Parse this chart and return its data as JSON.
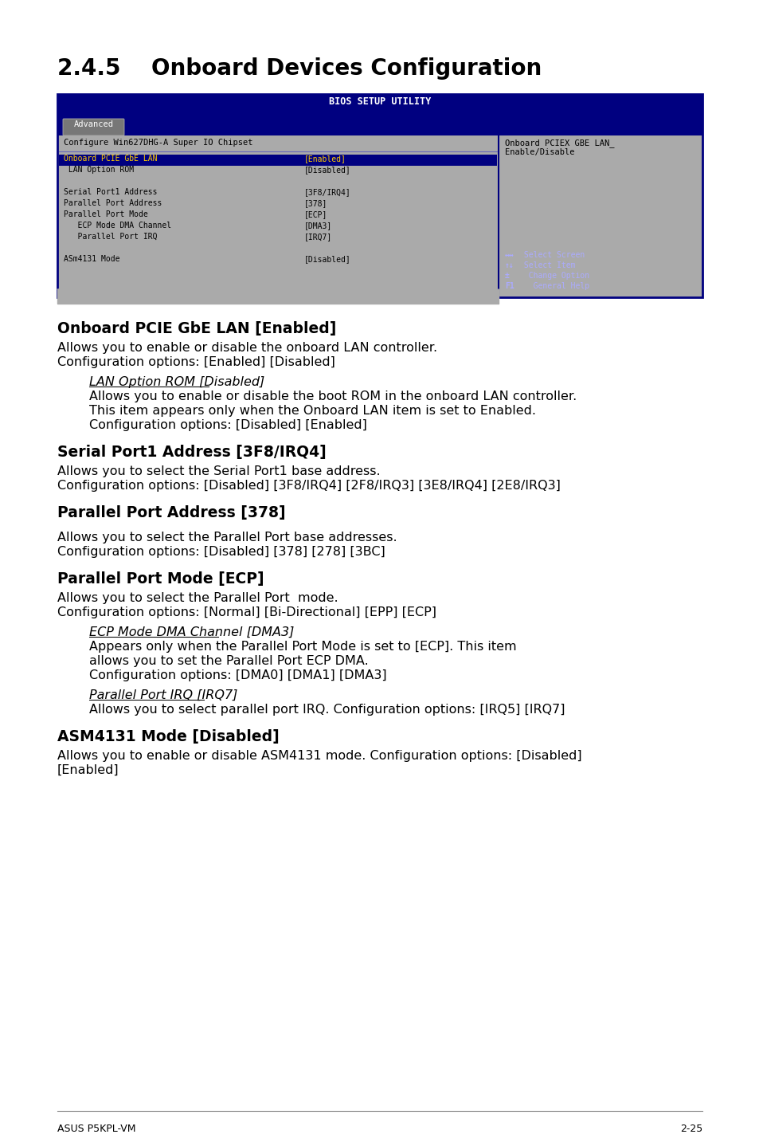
{
  "page_bg": "#ffffff",
  "title_section": "2.4.5    Onboard Devices Configuration",
  "bios_title": "BIOS SETUP UTILITY",
  "bios_tab": "Advanced",
  "bios_bg": "#000080",
  "bios_body_bg": "#aaaaaa",
  "bios_header_text": "Configure Win627DHG-A Super IO Chipset",
  "bios_right_text1": "Onboard PCIEX GBE LAN_",
  "bios_right_text2": "Enable/Disable",
  "bios_rows": [
    {
      "label": "Onboard PCIE GbE LAN",
      "value": "[Enabled]",
      "highlight": true
    },
    {
      "label": " LAN Option ROM",
      "value": "[Disabled]",
      "highlight": false
    },
    {
      "label": "",
      "value": "",
      "highlight": false
    },
    {
      "label": "Serial Port1 Address",
      "value": "[3F8/IRQ4]",
      "highlight": false
    },
    {
      "label": "Parallel Port Address",
      "value": "[378]",
      "highlight": false
    },
    {
      "label": "Parallel Port Mode",
      "value": "[ECP]",
      "highlight": false
    },
    {
      "label": "   ECP Mode DMA Channel",
      "value": "[DMA3]",
      "highlight": false
    },
    {
      "label": "   Parallel Port IRQ",
      "value": "[IRQ7]",
      "highlight": false
    },
    {
      "label": "",
      "value": "",
      "highlight": false
    },
    {
      "label": "ASm4131 Mode",
      "value": "[Disabled]",
      "highlight": false
    }
  ],
  "bios_nav": [
    [
      "↔↔",
      " Select Screen"
    ],
    [
      "↑↓",
      " Select Item"
    ],
    [
      "±",
      "  Change Option"
    ],
    [
      "F1",
      "   General Help"
    ]
  ],
  "sections": [
    {
      "heading": "Onboard PCIE GbE LAN [Enabled]",
      "body": [
        {
          "type": "normal",
          "text": "Allows you to enable or disable the onboard LAN controller."
        },
        {
          "type": "normal",
          "text": "Configuration options: [Enabled] [Disabled]"
        },
        {
          "type": "blank"
        },
        {
          "type": "italic_underline",
          "text": "LAN Option ROM [Disabled]"
        },
        {
          "type": "indented",
          "text": "Allows you to enable or disable the boot ROM in the onboard LAN controller."
        },
        {
          "type": "indented",
          "text": "This item appears only when the Onboard LAN item is set to Enabled."
        },
        {
          "type": "indented",
          "text": "Configuration options: [Disabled] [Enabled]"
        }
      ]
    },
    {
      "heading": "Serial Port1 Address [3F8/IRQ4]",
      "body": [
        {
          "type": "normal",
          "text": "Allows you to select the Serial Port1 base address."
        },
        {
          "type": "normal",
          "text": "Configuration options: [Disabled] [3F8/IRQ4] [2F8/IRQ3] [3E8/IRQ4] [2E8/IRQ3]"
        }
      ]
    },
    {
      "heading": "Parallel Port Address [378]",
      "body": [
        {
          "type": "blank"
        },
        {
          "type": "normal",
          "text": "Allows you to select the Parallel Port base addresses."
        },
        {
          "type": "normal",
          "text": "Configuration options: [Disabled] [378] [278] [3BC]"
        }
      ]
    },
    {
      "heading": "Parallel Port Mode [ECP]",
      "body": [
        {
          "type": "normal",
          "text": "Allows you to select the Parallel Port  mode."
        },
        {
          "type": "normal",
          "text": "Configuration options: [Normal] [Bi-Directional] [EPP] [ECP]"
        },
        {
          "type": "blank"
        },
        {
          "type": "italic_underline",
          "text": "ECP Mode DMA Channel [DMA3]"
        },
        {
          "type": "indented",
          "text": "Appears only when the Parallel Port Mode is set to [ECP]. This item"
        },
        {
          "type": "indented",
          "text": "allows you to set the Parallel Port ECP DMA."
        },
        {
          "type": "indented",
          "text": "Configuration options: [DMA0] [DMA1] [DMA3]"
        },
        {
          "type": "blank"
        },
        {
          "type": "italic_underline",
          "text": "Parallel Port IRQ [IRQ7]"
        },
        {
          "type": "indented",
          "text": "Allows you to select parallel port IRQ. Configuration options: [IRQ5] [IRQ7]"
        }
      ]
    },
    {
      "heading": "ASM4131 Mode [Disabled]",
      "body": [
        {
          "type": "normal",
          "text": "Allows you to enable or disable ASM4131 mode. Configuration options: [Disabled]"
        },
        {
          "type": "normal",
          "text": "[Enabled]"
        }
      ]
    }
  ],
  "footer_left": "ASUS P5KPL-VM",
  "footer_right": "2-25"
}
